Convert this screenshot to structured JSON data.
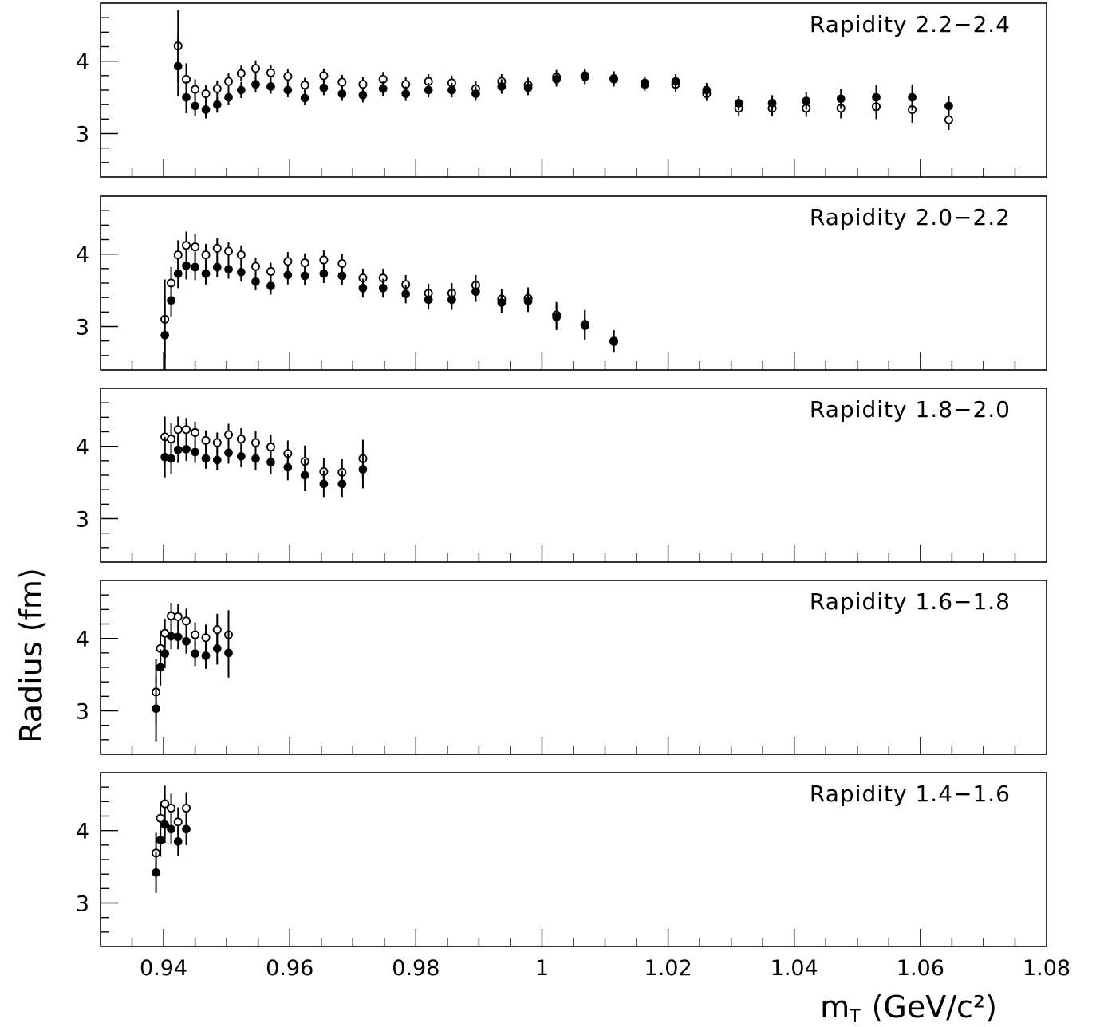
{
  "chart_data": {
    "type": "scatter",
    "xlabel": "m",
    "xlabel_sub": "T",
    "xlabel_unit": "(GeV/c²)",
    "ylabel": "Radius (fm)",
    "xlim": [
      0.93,
      1.08
    ],
    "xticks": [
      0.94,
      0.96,
      0.98,
      1.0,
      1.02,
      1.04,
      1.06,
      1.08
    ],
    "xtick_labels": [
      "0.94",
      "0.96",
      "0.98",
      "1",
      "1.02",
      "1.04",
      "1.06",
      "1.08"
    ],
    "ylim": [
      2.4,
      4.8
    ],
    "yticks": [
      3,
      4
    ],
    "ytick_labels": [
      "3",
      "4"
    ],
    "panels": [
      {
        "label": "Rapidity 2.2−2.4",
        "filled": [
          [
            0.9423,
            3.93,
            0.42
          ],
          [
            0.9436,
            3.5,
            0.22
          ],
          [
            0.945,
            3.38,
            0.14
          ],
          [
            0.9467,
            3.33,
            0.12
          ],
          [
            0.9485,
            3.4,
            0.11
          ],
          [
            0.9503,
            3.5,
            0.11
          ],
          [
            0.9523,
            3.6,
            0.11
          ],
          [
            0.9546,
            3.68,
            0.11
          ],
          [
            0.957,
            3.65,
            0.1
          ],
          [
            0.9597,
            3.6,
            0.1
          ],
          [
            0.9624,
            3.49,
            0.1
          ],
          [
            0.9654,
            3.63,
            0.1
          ],
          [
            0.9683,
            3.55,
            0.1
          ],
          [
            0.9716,
            3.53,
            0.1
          ],
          [
            0.9748,
            3.62,
            0.1
          ],
          [
            0.9784,
            3.55,
            0.1
          ],
          [
            0.982,
            3.6,
            0.1
          ],
          [
            0.9857,
            3.6,
            0.1
          ],
          [
            0.9895,
            3.55,
            0.1
          ],
          [
            0.9936,
            3.65,
            0.1
          ],
          [
            0.9978,
            3.63,
            0.1
          ],
          [
            1.0023,
            3.75,
            0.1
          ],
          [
            1.0068,
            3.78,
            0.1
          ],
          [
            1.0114,
            3.75,
            0.1
          ],
          [
            1.0163,
            3.7,
            0.09
          ],
          [
            1.0212,
            3.72,
            0.1
          ],
          [
            1.0261,
            3.6,
            0.1
          ],
          [
            1.0312,
            3.42,
            0.1
          ],
          [
            1.0365,
            3.42,
            0.11
          ],
          [
            1.0419,
            3.45,
            0.12
          ],
          [
            1.0474,
            3.48,
            0.14
          ],
          [
            1.053,
            3.5,
            0.17
          ],
          [
            1.0587,
            3.5,
            0.18
          ],
          [
            1.0645,
            3.38,
            0.14
          ]
        ],
        "open": [
          [
            0.9423,
            4.21,
            0.49
          ],
          [
            0.9436,
            3.75,
            0.22
          ],
          [
            0.945,
            3.61,
            0.14
          ],
          [
            0.9467,
            3.55,
            0.12
          ],
          [
            0.9485,
            3.62,
            0.11
          ],
          [
            0.9503,
            3.72,
            0.11
          ],
          [
            0.9523,
            3.83,
            0.11
          ],
          [
            0.9546,
            3.9,
            0.11
          ],
          [
            0.957,
            3.84,
            0.1
          ],
          [
            0.9597,
            3.79,
            0.1
          ],
          [
            0.9624,
            3.67,
            0.1
          ],
          [
            0.9654,
            3.8,
            0.1
          ],
          [
            0.9683,
            3.71,
            0.1
          ],
          [
            0.9716,
            3.68,
            0.1
          ],
          [
            0.9748,
            3.75,
            0.1
          ],
          [
            0.9784,
            3.68,
            0.1
          ],
          [
            0.982,
            3.72,
            0.1
          ],
          [
            0.9857,
            3.7,
            0.1
          ],
          [
            0.9895,
            3.62,
            0.1
          ],
          [
            0.9936,
            3.72,
            0.1
          ],
          [
            0.9978,
            3.67,
            0.1
          ],
          [
            1.0023,
            3.78,
            0.1
          ],
          [
            1.0068,
            3.8,
            0.1
          ],
          [
            1.0114,
            3.76,
            0.1
          ],
          [
            1.0163,
            3.68,
            0.09
          ],
          [
            1.0212,
            3.68,
            0.1
          ],
          [
            1.0261,
            3.55,
            0.1
          ],
          [
            1.0312,
            3.35,
            0.1
          ],
          [
            1.0365,
            3.35,
            0.11
          ],
          [
            1.0419,
            3.35,
            0.12
          ],
          [
            1.0474,
            3.35,
            0.14
          ],
          [
            1.053,
            3.37,
            0.17
          ],
          [
            1.0587,
            3.33,
            0.18
          ],
          [
            1.0645,
            3.19,
            0.14
          ]
        ]
      },
      {
        "label": "Rapidity 2.0−2.2",
        "filled": [
          [
            0.9402,
            2.88,
            0.55
          ],
          [
            0.9412,
            3.36,
            0.22
          ],
          [
            0.9423,
            3.73,
            0.2
          ],
          [
            0.9436,
            3.84,
            0.19
          ],
          [
            0.945,
            3.82,
            0.18
          ],
          [
            0.9467,
            3.73,
            0.15
          ],
          [
            0.9485,
            3.82,
            0.14
          ],
          [
            0.9503,
            3.79,
            0.13
          ],
          [
            0.9523,
            3.75,
            0.13
          ],
          [
            0.9546,
            3.62,
            0.12
          ],
          [
            0.957,
            3.56,
            0.12
          ],
          [
            0.9597,
            3.71,
            0.13
          ],
          [
            0.9624,
            3.7,
            0.13
          ],
          [
            0.9654,
            3.73,
            0.13
          ],
          [
            0.9683,
            3.7,
            0.13
          ],
          [
            0.9716,
            3.53,
            0.13
          ],
          [
            0.9748,
            3.53,
            0.13
          ],
          [
            0.9784,
            3.45,
            0.13
          ],
          [
            0.982,
            3.37,
            0.13
          ],
          [
            0.9857,
            3.37,
            0.14
          ],
          [
            0.9895,
            3.48,
            0.14
          ],
          [
            0.9936,
            3.33,
            0.14
          ],
          [
            0.9978,
            3.35,
            0.15
          ],
          [
            1.0023,
            3.13,
            0.18
          ],
          [
            1.0068,
            3.01,
            0.2
          ],
          [
            1.0114,
            2.79,
            0.15
          ]
        ],
        "open": [
          [
            0.9402,
            3.1,
            0.55
          ],
          [
            0.9412,
            3.6,
            0.22
          ],
          [
            0.9423,
            3.99,
            0.2
          ],
          [
            0.9436,
            4.12,
            0.19
          ],
          [
            0.945,
            4.1,
            0.18
          ],
          [
            0.9467,
            3.99,
            0.15
          ],
          [
            0.9485,
            4.08,
            0.14
          ],
          [
            0.9503,
            4.04,
            0.13
          ],
          [
            0.9523,
            3.99,
            0.13
          ],
          [
            0.9546,
            3.83,
            0.12
          ],
          [
            0.957,
            3.76,
            0.12
          ],
          [
            0.9597,
            3.9,
            0.13
          ],
          [
            0.9624,
            3.88,
            0.13
          ],
          [
            0.9654,
            3.92,
            0.13
          ],
          [
            0.9683,
            3.87,
            0.13
          ],
          [
            0.9716,
            3.67,
            0.13
          ],
          [
            0.9748,
            3.67,
            0.13
          ],
          [
            0.9784,
            3.58,
            0.13
          ],
          [
            0.982,
            3.46,
            0.13
          ],
          [
            0.9857,
            3.46,
            0.14
          ],
          [
            0.9895,
            3.57,
            0.14
          ],
          [
            0.9936,
            3.38,
            0.14
          ],
          [
            0.9978,
            3.39,
            0.15
          ],
          [
            1.0023,
            3.16,
            0.18
          ],
          [
            1.0068,
            3.03,
            0.2
          ],
          [
            1.0114,
            2.8,
            0.15
          ]
        ]
      },
      {
        "label": "Rapidity 1.8−2.0",
        "filled": [
          [
            0.9402,
            3.85,
            0.28
          ],
          [
            0.9412,
            3.83,
            0.22
          ],
          [
            0.9423,
            3.95,
            0.18
          ],
          [
            0.9436,
            3.96,
            0.16
          ],
          [
            0.945,
            3.92,
            0.15
          ],
          [
            0.9467,
            3.83,
            0.14
          ],
          [
            0.9485,
            3.81,
            0.14
          ],
          [
            0.9503,
            3.91,
            0.15
          ],
          [
            0.9523,
            3.86,
            0.15
          ],
          [
            0.9546,
            3.83,
            0.16
          ],
          [
            0.957,
            3.78,
            0.17
          ],
          [
            0.9597,
            3.71,
            0.18
          ],
          [
            0.9624,
            3.6,
            0.22
          ],
          [
            0.9654,
            3.48,
            0.18
          ],
          [
            0.9683,
            3.48,
            0.18
          ],
          [
            0.9716,
            3.68,
            0.26
          ]
        ],
        "open": [
          [
            0.9402,
            4.13,
            0.28
          ],
          [
            0.9412,
            4.1,
            0.22
          ],
          [
            0.9423,
            4.23,
            0.18
          ],
          [
            0.9436,
            4.23,
            0.16
          ],
          [
            0.945,
            4.19,
            0.15
          ],
          [
            0.9467,
            4.08,
            0.14
          ],
          [
            0.9485,
            4.05,
            0.14
          ],
          [
            0.9503,
            4.16,
            0.15
          ],
          [
            0.9523,
            4.1,
            0.15
          ],
          [
            0.9546,
            4.05,
            0.16
          ],
          [
            0.957,
            3.99,
            0.17
          ],
          [
            0.9597,
            3.9,
            0.18
          ],
          [
            0.9624,
            3.79,
            0.22
          ],
          [
            0.9654,
            3.65,
            0.18
          ],
          [
            0.9683,
            3.64,
            0.18
          ],
          [
            0.9716,
            3.83,
            0.26
          ]
        ]
      },
      {
        "label": "Rapidity 1.6−1.8",
        "filled": [
          [
            0.9388,
            3.03,
            0.45
          ],
          [
            0.9395,
            3.6,
            0.25
          ],
          [
            0.9402,
            3.79,
            0.2
          ],
          [
            0.9412,
            4.03,
            0.18
          ],
          [
            0.9423,
            4.02,
            0.17
          ],
          [
            0.9436,
            3.96,
            0.17
          ],
          [
            0.945,
            3.79,
            0.17
          ],
          [
            0.9467,
            3.76,
            0.18
          ],
          [
            0.9485,
            3.86,
            0.22
          ],
          [
            0.9503,
            3.8,
            0.34
          ]
        ],
        "open": [
          [
            0.9388,
            3.26,
            0.45
          ],
          [
            0.9395,
            3.86,
            0.25
          ],
          [
            0.9402,
            4.07,
            0.2
          ],
          [
            0.9412,
            4.31,
            0.18
          ],
          [
            0.9423,
            4.3,
            0.17
          ],
          [
            0.9436,
            4.24,
            0.17
          ],
          [
            0.945,
            4.05,
            0.17
          ],
          [
            0.9467,
            4.01,
            0.18
          ],
          [
            0.9485,
            4.12,
            0.22
          ],
          [
            0.9503,
            4.05,
            0.34
          ]
        ]
      },
      {
        "label": "Rapidity 1.4−1.6",
        "filled": [
          [
            0.9388,
            3.42,
            0.28
          ],
          [
            0.9395,
            3.87,
            0.23
          ],
          [
            0.9402,
            4.08,
            0.25
          ],
          [
            0.9412,
            4.02,
            0.2
          ],
          [
            0.9423,
            3.85,
            0.2
          ],
          [
            0.9436,
            4.02,
            0.22
          ]
        ],
        "open": [
          [
            0.9388,
            3.69,
            0.28
          ],
          [
            0.9395,
            4.17,
            0.23
          ],
          [
            0.9402,
            4.37,
            0.25
          ],
          [
            0.9412,
            4.31,
            0.2
          ],
          [
            0.9423,
            4.12,
            0.2
          ],
          [
            0.9436,
            4.31,
            0.22
          ]
        ]
      }
    ]
  }
}
